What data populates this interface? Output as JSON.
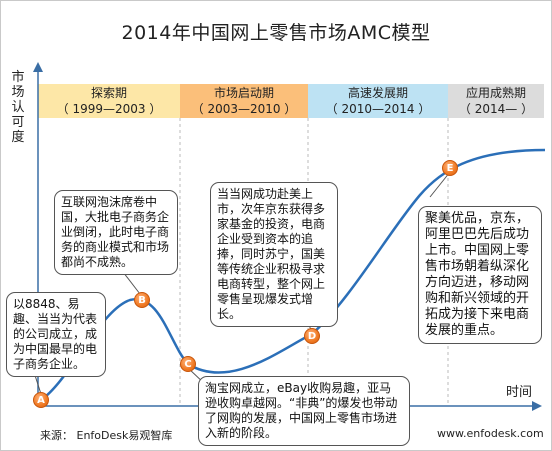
{
  "title": "2014年中国网上零售市场AMC模型",
  "y_axis_label": "市场认可度",
  "x_axis_label": "时间",
  "phases": [
    {
      "name": "探索期",
      "range": "（ 1999—2003 ）",
      "color": "#fde7a7"
    },
    {
      "name": "市场启动期",
      "range": "（ 2003—2010 ）",
      "color": "#fbbf7a"
    },
    {
      "name": "高速发展期",
      "range": "（ 2010—2014 ）",
      "color": "#bde2f3"
    },
    {
      "name": "应用成熟期",
      "range": "（ 2014— ）",
      "color": "#dcdcdc"
    }
  ],
  "markers": [
    "A",
    "B",
    "C",
    "D",
    "E"
  ],
  "callouts": {
    "a": "以8848、易趣、当当为代表的公司成立，成为中国最早的电子商务企业。",
    "b": "互联网泡沫席卷中国，大批电子商务企业倒闭，此时电子商务的商业模式和市场都尚不成熟。",
    "c": "淘宝网成立，eBay收购易趣，亚马逊收购卓越网。“非典”的爆发也带动了网购的发展，中国网上零售市场进入新的阶段。",
    "d": "当当网成功赴美上市，次年京东获得多家基金的投资，电商企业受到资本的追捧，同时苏宁，国美等传统企业积极寻求电商转型，整个网上零售呈现爆发式增长。",
    "e": "聚美优品，京东，阿里巴巴先后成功上市。中国网上零售市场朝着纵深化方向迈进，移动网购和新兴领域的开拓成为接下来电商发展的重点。"
  },
  "source": "来源： EnfoDesk易观智库",
  "website": "www.enfodesk.com",
  "colors": {
    "curve": "#2b6fb8",
    "marker": "#f07a24",
    "axis": "#3a6ea5"
  }
}
